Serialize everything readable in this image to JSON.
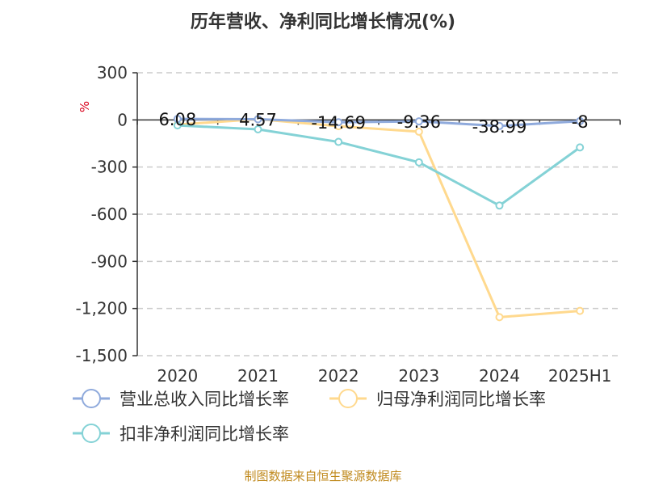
{
  "chart_data": {
    "type": "line",
    "title": "历年营收、净利同比增长情况(%)",
    "ylabel": "%",
    "categories": [
      "2020",
      "2021",
      "2022",
      "2023",
      "2024",
      "2025H1"
    ],
    "ylim": [
      -1500,
      300
    ],
    "yticks": [
      300,
      0,
      -300,
      -600,
      -900,
      -1200,
      -1500
    ],
    "ytick_labels": [
      "300",
      "0",
      "-300",
      "-600",
      "-900",
      "-1,200",
      "-1,500"
    ],
    "grid": true,
    "legend_position": "bottom-left",
    "series": [
      {
        "name": "营业总收入同比增长率",
        "values": [
          6.08,
          4.57,
          -14.69,
          -9.36,
          -38.99,
          -8
        ],
        "data_labels": [
          "6.08",
          "4.57",
          "-14.69",
          "-9.36",
          "-38.99",
          "-8"
        ],
        "color": "#8faadc"
      },
      {
        "name": "归母净利润同比增长率",
        "values": [
          -30,
          5,
          -40,
          -75,
          -1255,
          -1215
        ],
        "color": "#ffd98e"
      },
      {
        "name": "扣非净利润同比增长率",
        "values": [
          -35,
          -60,
          -140,
          -270,
          -545,
          -175
        ],
        "color": "#84d2d6"
      }
    ]
  },
  "source": "制图数据来自恒生聚源数据库"
}
